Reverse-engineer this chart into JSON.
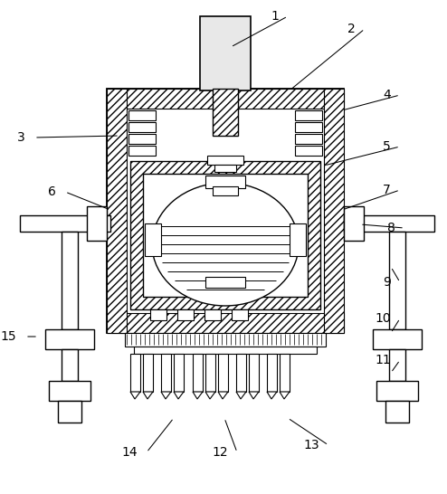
{
  "bg_color": "#ffffff",
  "figsize": [
    4.94,
    5.46
  ],
  "dpi": 100,
  "labels_pos": {
    "1": [
      308,
      18,
      255,
      52
    ],
    "2": [
      393,
      32,
      320,
      100
    ],
    "3": [
      28,
      152,
      132,
      150
    ],
    "4": [
      432,
      105,
      378,
      122
    ],
    "5": [
      432,
      162,
      358,
      183
    ],
    "6": [
      62,
      212,
      122,
      232
    ],
    "7": [
      432,
      210,
      378,
      232
    ],
    "8": [
      437,
      252,
      398,
      248
    ],
    "9": [
      432,
      312,
      432,
      295
    ],
    "10": [
      432,
      352,
      432,
      368
    ],
    "11": [
      432,
      398,
      432,
      412
    ],
    "12": [
      252,
      500,
      248,
      462
    ],
    "13": [
      353,
      492,
      318,
      462
    ],
    "14": [
      152,
      500,
      192,
      462
    ],
    "15": [
      18,
      372,
      42,
      372
    ]
  }
}
